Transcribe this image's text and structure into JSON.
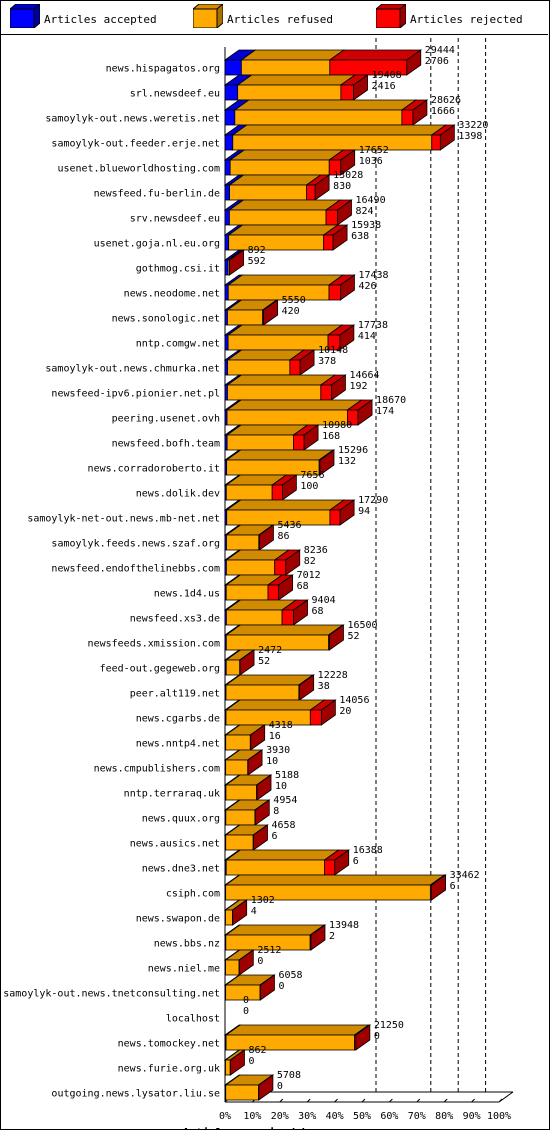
{
  "legend": [
    {
      "label": "Articles accepted",
      "color": "#0000ff"
    },
    {
      "label": "Articles refused",
      "color": "#ffaa00"
    },
    {
      "label": "Articles rejected",
      "color": "#ff0000"
    }
  ],
  "chart_data": {
    "type": "bar",
    "orientation": "horizontal",
    "stacked": true,
    "xlabel": "Articles received by server",
    "xticks": [
      "0%",
      "10%",
      "20%",
      "30%",
      "40%",
      "50%",
      "60%",
      "70%",
      "80%",
      "90%",
      "100%"
    ],
    "xlim": [
      0,
      33462
    ],
    "grid": "vertical dashed lines at 50%, 70%, 80%, 90%",
    "categories": [
      "news.hispagatos.org",
      "srl.newsdeef.eu",
      "samoylyk-out.news.weretis.net",
      "samoylyk-out.feeder.erje.net",
      "usenet.blueworldhosting.com",
      "newsfeed.fu-berlin.de",
      "srv.newsdeef.eu",
      "usenet.goja.nl.eu.org",
      "gothmog.csi.it",
      "news.neodome.net",
      "news.sonologic.net",
      "nntp.comgw.net",
      "samoylyk-out.news.chmurka.net",
      "newsfeed-ipv6.pionier.net.pl",
      "peering.usenet.ovh",
      "newsfeed.bofh.team",
      "news.corradoroberto.it",
      "news.dolik.dev",
      "samoylyk-net-out.news.mb-net.net",
      "samoylyk.feeds.news.szaf.org",
      "newsfeed.endofthelinebbs.com",
      "news.1d4.us",
      "newsfeed.xs3.de",
      "newsfeeds.xmission.com",
      "feed-out.gegeweb.org",
      "peer.alt119.net",
      "news.cgarbs.de",
      "news.nntp4.net",
      "news.cmpublishers.com",
      "nntp.terraraq.uk",
      "news.quux.org",
      "news.ausics.net",
      "news.dne3.net",
      "csiph.com",
      "news.swapon.de",
      "news.bbs.nz",
      "news.niel.me",
      "samoylyk-out.news.tnetconsulting.net",
      "localhost",
      "news.tomockey.net",
      "news.furie.org.uk",
      "outgoing.news.lysator.liu.se"
    ],
    "total": [
      29444,
      19408,
      28626,
      33220,
      17652,
      13028,
      16490,
      15938,
      892,
      17438,
      5550,
      17738,
      10148,
      14664,
      18670,
      10980,
      15296,
      7656,
      17290,
      5436,
      8236,
      7012,
      9404,
      16500,
      2472,
      12228,
      14056,
      4318,
      3930,
      5188,
      4954,
      4658,
      16388,
      33462,
      1302,
      13948,
      2512,
      6058,
      0,
      21250,
      862,
      5708
    ],
    "rejected": [
      2706,
      2416,
      1666,
      1398,
      1036,
      830,
      824,
      638,
      592,
      426,
      420,
      414,
      378,
      192,
      174,
      168,
      132,
      100,
      94,
      86,
      82,
      68,
      68,
      52,
      52,
      38,
      20,
      16,
      10,
      10,
      8,
      6,
      6,
      6,
      4,
      2,
      0,
      0,
      0,
      0,
      0,
      0
    ],
    "series": [
      {
        "name": "Articles accepted",
        "values": [
          2000,
          1550,
          1200,
          950,
          630,
          560,
          540,
          450,
          360,
          400,
          300,
          380,
          320,
          300,
          250,
          260,
          200,
          160,
          210,
          180,
          170,
          150,
          170,
          160,
          150,
          120,
          120,
          90,
          80,
          110,
          100,
          90,
          150,
          80,
          60,
          100,
          70,
          80,
          0,
          130,
          60,
          90
        ]
      },
      {
        "name": "Articles refused",
        "values": [
          10800,
          12600,
          20400,
          24300,
          12100,
          9400,
          11800,
          11600,
          170,
          12300,
          4300,
          12200,
          7600,
          11400,
          14700,
          8100,
          11300,
          5600,
          12600,
          3950,
          5900,
          5100,
          6800,
          12500,
          1650,
          8900,
          10300,
          3000,
          2700,
          3750,
          3550,
          3350,
          12000,
          25000,
          850,
          10300,
          1650,
          4200,
          0,
          15700,
          580,
          4000
        ]
      },
      {
        "name": "Articles rejected",
        "values": [
          9400,
          1550,
          1350,
          1050,
          1400,
          1050,
          1400,
          1150,
          30,
          1400,
          120,
          1450,
          1250,
          1300,
          1300,
          1300,
          100,
          1250,
          1250,
          80,
          1350,
          1300,
          1400,
          100,
          40,
          100,
          1350,
          50,
          40,
          50,
          50,
          40,
          1250,
          150,
          30,
          100,
          30,
          50,
          0,
          150,
          30,
          50
        ]
      }
    ]
  }
}
